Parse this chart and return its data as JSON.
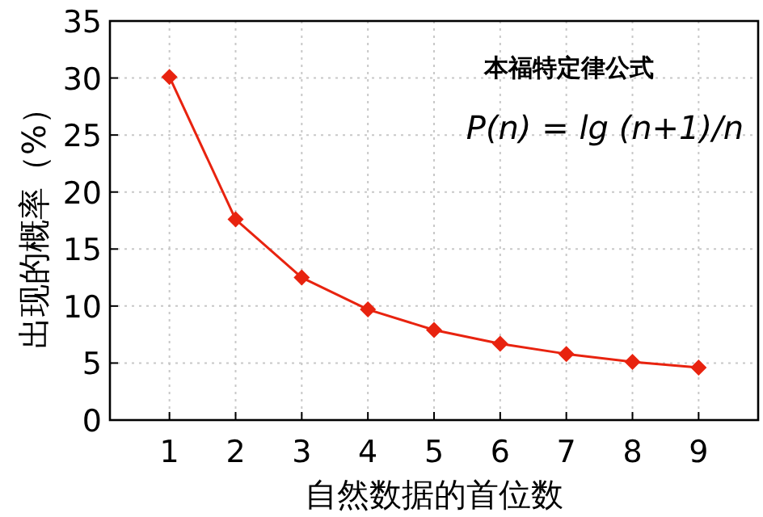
{
  "chart_data": {
    "type": "line",
    "xlabel": "自然数据的首位数",
    "ylabel": "出现的概率（%）",
    "annotations": [
      "本福特定律公式",
      "P(n) = lg (n+1)/n"
    ],
    "x": [
      1,
      2,
      3,
      4,
      5,
      6,
      7,
      8,
      9
    ],
    "series": [
      {
        "color": "#e8230f",
        "values": [
          30.1,
          17.6,
          12.5,
          9.7,
          7.9,
          6.7,
          5.8,
          5.1,
          4.6
        ]
      }
    ],
    "xlim": [
      0.1,
      9.9
    ],
    "xticks": [
      1,
      2,
      3,
      4,
      5,
      6,
      7,
      8,
      9
    ],
    "ylim": [
      0,
      35
    ],
    "yticks": [
      0,
      5,
      10,
      15,
      20,
      25,
      30,
      35
    ],
    "grid": true,
    "marker": "diamond",
    "line_style": "solid"
  }
}
